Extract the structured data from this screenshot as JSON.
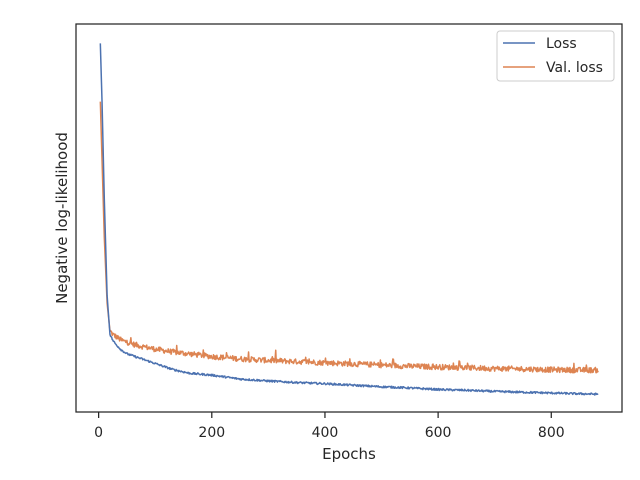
{
  "chart_data": {
    "type": "line",
    "title": "",
    "xlabel": "Epochs",
    "ylabel": "Negative log-likelihood",
    "xlim": [
      -40,
      925
    ],
    "ylim": [
      0,
      100
    ],
    "y_ticks_labeled": false,
    "x_ticks": [
      0,
      200,
      400,
      600,
      800
    ],
    "x_tick_labels": [
      "0",
      "200",
      "400",
      "600",
      "800"
    ],
    "grid": false,
    "legend_position": "top-right",
    "series": [
      {
        "name": "Loss",
        "color": "#4c72b0",
        "noise": 0.25,
        "x": [
          3,
          6,
          10,
          15,
          20,
          25,
          30,
          40,
          50,
          60,
          80,
          100,
          130,
          160,
          200,
          250,
          300,
          350,
          400,
          450,
          500,
          550,
          600,
          650,
          700,
          750,
          800,
          850,
          883
        ],
        "values": [
          95,
          80,
          55,
          30,
          20,
          18.5,
          17.5,
          16,
          15,
          14.5,
          13.5,
          12.5,
          11,
          10,
          9.5,
          8.5,
          8,
          7.6,
          7.3,
          6.9,
          6.5,
          6.2,
          5.8,
          5.6,
          5.3,
          5.1,
          4.9,
          4.7,
          4.6
        ]
      },
      {
        "name": "Val. loss",
        "color": "#dd8452",
        "noise": 0.7,
        "x": [
          3,
          6,
          10,
          15,
          20,
          25,
          30,
          40,
          50,
          60,
          80,
          100,
          130,
          160,
          200,
          250,
          300,
          350,
          400,
          450,
          500,
          550,
          600,
          650,
          700,
          750,
          800,
          850,
          883
        ],
        "values": [
          80,
          65,
          45,
          28,
          21,
          20,
          19.5,
          18.5,
          18,
          17.5,
          16.8,
          16.2,
          15.5,
          15,
          14.3,
          13.7,
          13.3,
          13,
          12.7,
          12.4,
          12.1,
          11.8,
          11.6,
          11.4,
          11.2,
          11.1,
          10.9,
          10.8,
          10.8
        ]
      }
    ]
  }
}
